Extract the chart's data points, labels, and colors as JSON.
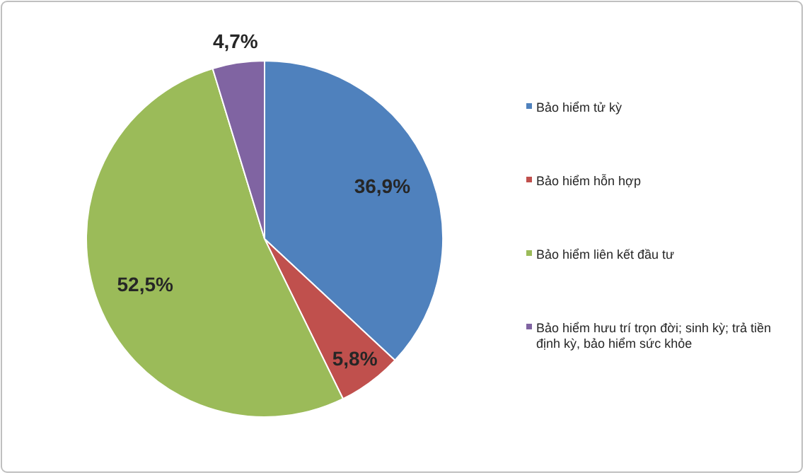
{
  "chart_data": {
    "type": "pie",
    "categories": [
      "Bảo hiểm tử kỳ",
      "Bảo hiểm hỗn hợp",
      "Bảo hiểm liên kết đầu tư",
      "Bảo hiểm hưu trí trọn đời; sinh kỳ; trả tiền định kỳ, bảo hiểm sức khỏe"
    ],
    "values": [
      36.9,
      5.8,
      52.5,
      4.7
    ],
    "colors": [
      "#4f81bd",
      "#c0504d",
      "#9bbb59",
      "#8064a2"
    ],
    "value_labels": [
      "36,9%",
      "5,8%",
      "52,5%",
      "4,7%"
    ],
    "legend": "right"
  }
}
